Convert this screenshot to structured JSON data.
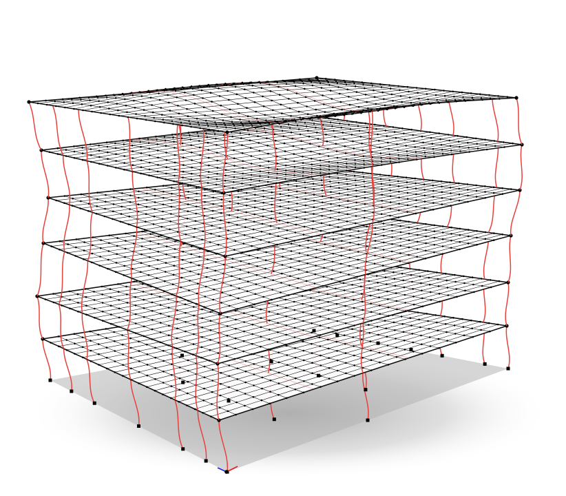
{
  "model": {
    "type": "3d-frame-mode-shape",
    "stories": 6,
    "column_count": 22,
    "slab_mesh_divisions": [
      22,
      17
    ],
    "colors": {
      "background": "#ffffff",
      "column_deformed": "#e8413c",
      "slab_fill": "#ffffff",
      "mesh_line": "#111111",
      "node": "#000000",
      "shadow": "#b4b4b4",
      "axis_x": "#e02020",
      "axis_y": "#2020e0"
    },
    "icons": [
      "global-axis-triad-icon"
    ]
  }
}
